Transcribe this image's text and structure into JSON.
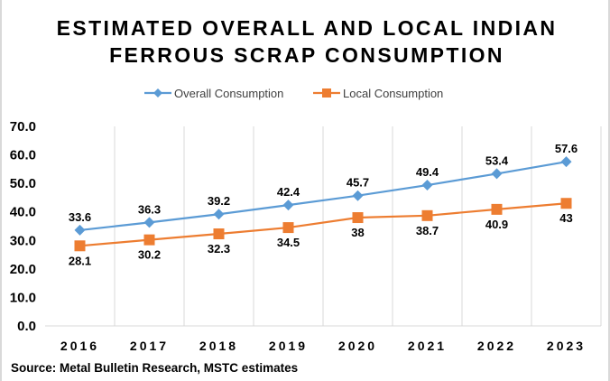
{
  "chart_data": {
    "type": "line",
    "title": [
      "ESTIMATED OVERALL AND LOCAL INDIAN",
      "FERROUS SCRAP CONSUMPTION"
    ],
    "categories": [
      "2016",
      "2017",
      "2018",
      "2019",
      "2020",
      "2021",
      "2022",
      "2023"
    ],
    "series": [
      {
        "name": "Overall Consumption",
        "color": "#5b9bd5",
        "marker": "diamond",
        "values": [
          33.6,
          36.3,
          39.2,
          42.4,
          45.7,
          49.4,
          53.4,
          57.6
        ],
        "labels": [
          "33.6",
          "36.3",
          "39.2",
          "42.4",
          "45.7",
          "49.4",
          "53.4",
          "57.6"
        ],
        "label_position": "above"
      },
      {
        "name": "Local Consumption",
        "color": "#ed7d31",
        "marker": "square",
        "values": [
          28.1,
          30.2,
          32.3,
          34.5,
          38,
          38.7,
          40.9,
          43
        ],
        "labels": [
          "28.1",
          "30.2",
          "32.3",
          "34.5",
          "38",
          "38.7",
          "40.9",
          "43"
        ],
        "label_position": "below"
      }
    ],
    "yticks": [
      "0.0",
      "10.0",
      "20.0",
      "30.0",
      "40.0",
      "50.0",
      "60.0",
      "70.0"
    ],
    "ylim": [
      0,
      70
    ],
    "xlabel": "",
    "ylabel": "",
    "grid": "vertical",
    "legend": "top-center",
    "source": "Source: Metal Bulletin Research, MSTC estimates"
  }
}
